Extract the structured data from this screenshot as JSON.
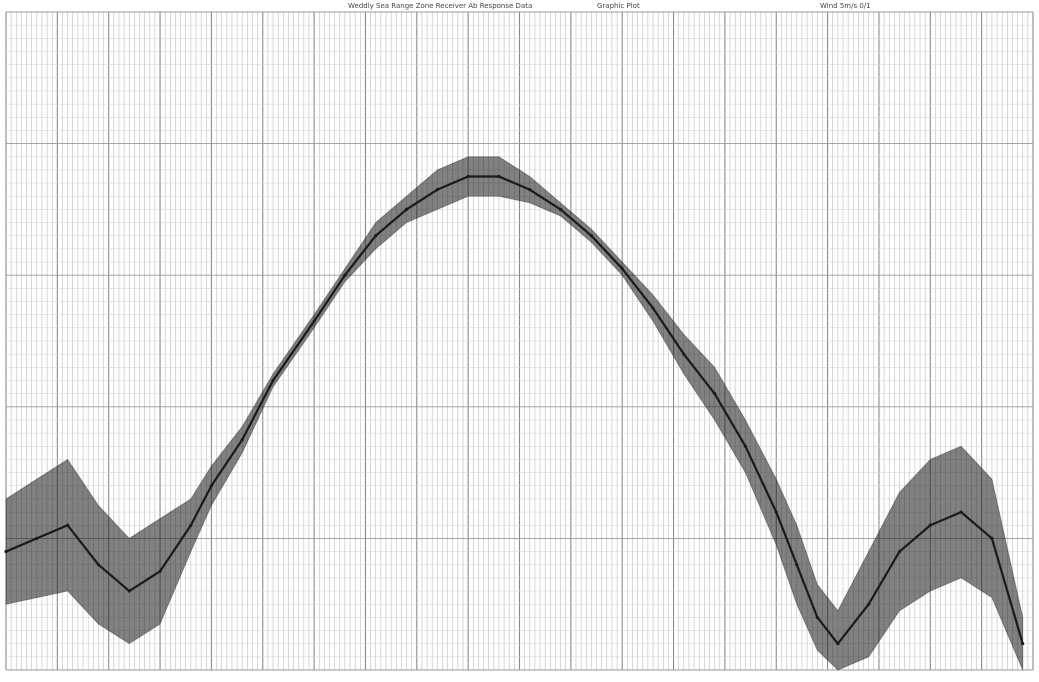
{
  "header": {
    "left_text": "Weddly Sea Range Zone Receiver Ab Response Data",
    "middle_text": "Graphic Plot",
    "right_text": "Wind 5m/s 0/1"
  },
  "chart_data": {
    "type": "line",
    "title": "",
    "xlabel": "",
    "ylabel": "",
    "xlim": [
      0,
      100
    ],
    "ylim": [
      0,
      100
    ],
    "grid": true,
    "x_ticks": [],
    "series": [
      {
        "name": "",
        "color": "#1a1a1a",
        "x": [
          0,
          3,
          6,
          9,
          12,
          15,
          18,
          20,
          23,
          26,
          30,
          33,
          36,
          39,
          42,
          45,
          48,
          51,
          54,
          57,
          60,
          63,
          66,
          69,
          72,
          75,
          77,
          79,
          81,
          84,
          87,
          90,
          93,
          96,
          99
        ],
        "y": [
          18,
          20,
          22,
          16,
          12,
          15,
          22,
          28,
          35,
          44,
          53,
          60,
          66,
          70,
          73,
          75,
          75,
          73,
          70,
          66,
          61,
          55,
          48,
          42,
          34,
          24,
          16,
          8,
          4,
          10,
          18,
          22,
          24,
          20,
          4
        ],
        "band": [
          8,
          9,
          10,
          9,
          8,
          8,
          4,
          3,
          2,
          1,
          1,
          1,
          2,
          2,
          3,
          3,
          3,
          2,
          1,
          1,
          1,
          2,
          3,
          4,
          4,
          5,
          6,
          5,
          5,
          8,
          9,
          10,
          10,
          9,
          4
        ]
      }
    ]
  }
}
